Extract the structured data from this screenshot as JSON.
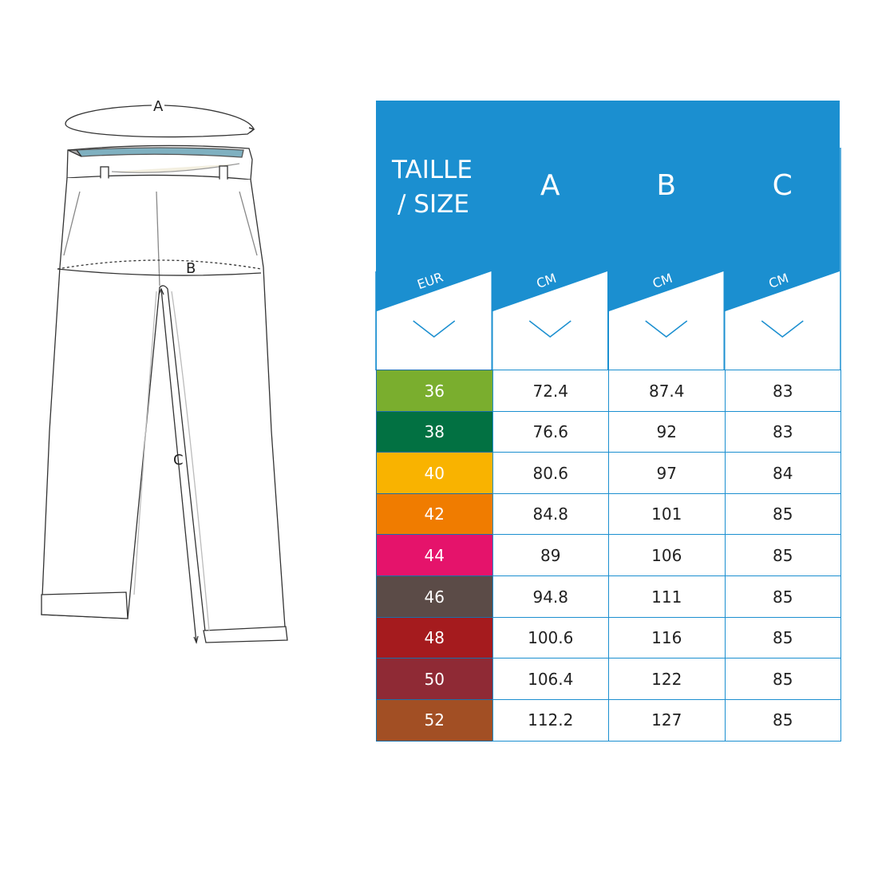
{
  "diagram": {
    "labels": {
      "a": "A",
      "b": "B",
      "c": "C"
    }
  },
  "table": {
    "header_color": "#1b8fd0",
    "columns": [
      {
        "title_line1": "TAILLE",
        "title_line2": "/ SIZE",
        "unit": "EUR"
      },
      {
        "title_line1": "A",
        "title_line2": "",
        "unit": "CM"
      },
      {
        "title_line1": "B",
        "title_line2": "",
        "unit": "CM"
      },
      {
        "title_line1": "C",
        "title_line2": "",
        "unit": "CM"
      }
    ],
    "chevron_icon": "chevron-down-icon",
    "rows": [
      {
        "size": "36",
        "a": "72.4",
        "b": "87.4",
        "c": "83",
        "color": "#7aae2e"
      },
      {
        "size": "38",
        "a": "76.6",
        "b": "92",
        "c": "83",
        "color": "#027142"
      },
      {
        "size": "40",
        "a": "80.6",
        "b": "97",
        "c": "84",
        "color": "#f9b300"
      },
      {
        "size": "42",
        "a": "84.8",
        "b": "101",
        "c": "85",
        "color": "#f07c00"
      },
      {
        "size": "44",
        "a": "89",
        "b": "106",
        "c": "85",
        "color": "#e5136b"
      },
      {
        "size": "46",
        "a": "94.8",
        "b": "111",
        "c": "85",
        "color": "#5b4b47"
      },
      {
        "size": "48",
        "a": "100.6",
        "b": "116",
        "c": "85",
        "color": "#a51b1e"
      },
      {
        "size": "50",
        "a": "106.4",
        "b": "122",
        "c": "85",
        "color": "#8f2a35"
      },
      {
        "size": "52",
        "a": "112.2",
        "b": "127",
        "c": "85",
        "color": "#a24f24"
      }
    ]
  }
}
